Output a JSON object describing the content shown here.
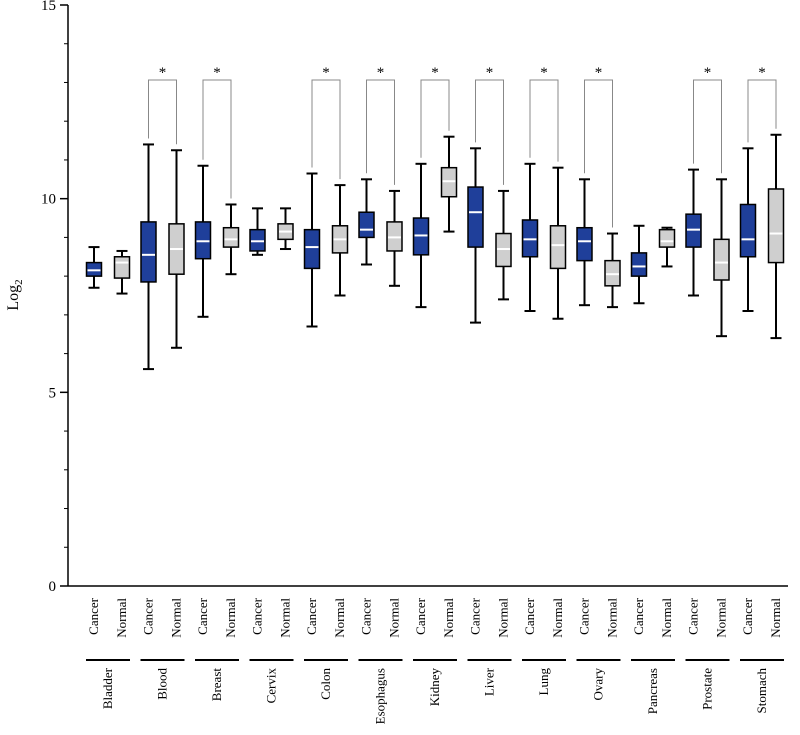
{
  "chart_data": {
    "type": "boxplot",
    "ylabel": "Log",
    "ylabel_subscript": "2",
    "ylim": [
      0,
      15
    ],
    "yticks": [
      0,
      5,
      10,
      15
    ],
    "colors": {
      "cancer": "#1f3f9a",
      "normal": "#cfcfcf",
      "median": "#ffffff"
    },
    "significance_marker": "*",
    "groups": [
      {
        "tissue": "Bladder",
        "significant": false,
        "boxes": [
          {
            "label": "Cancer",
            "min": 7.7,
            "q1": 8.0,
            "median": 8.15,
            "q3": 8.35,
            "max": 8.75
          },
          {
            "label": "Normal",
            "min": 7.55,
            "q1": 7.95,
            "median": 8.35,
            "q3": 8.5,
            "max": 8.65
          }
        ]
      },
      {
        "tissue": "Blood",
        "significant": true,
        "boxes": [
          {
            "label": "Cancer",
            "min": 5.6,
            "q1": 7.85,
            "median": 8.55,
            "q3": 9.4,
            "max": 11.4
          },
          {
            "label": "Normal",
            "min": 6.15,
            "q1": 8.05,
            "median": 8.7,
            "q3": 9.35,
            "max": 11.25
          }
        ]
      },
      {
        "tissue": "Breast",
        "significant": true,
        "boxes": [
          {
            "label": "Cancer",
            "min": 6.95,
            "q1": 8.45,
            "median": 8.9,
            "q3": 9.4,
            "max": 10.85
          },
          {
            "label": "Normal",
            "min": 8.05,
            "q1": 8.75,
            "median": 8.95,
            "q3": 9.25,
            "max": 9.85
          }
        ]
      },
      {
        "tissue": "Cervix",
        "significant": false,
        "boxes": [
          {
            "label": "Cancer",
            "min": 8.55,
            "q1": 8.65,
            "median": 8.9,
            "q3": 9.2,
            "max": 9.75
          },
          {
            "label": "Normal",
            "min": 8.7,
            "q1": 8.95,
            "median": 9.15,
            "q3": 9.35,
            "max": 9.75
          }
        ]
      },
      {
        "tissue": "Colon",
        "significant": true,
        "boxes": [
          {
            "label": "Cancer",
            "min": 6.7,
            "q1": 8.2,
            "median": 8.75,
            "q3": 9.2,
            "max": 10.65
          },
          {
            "label": "Normal",
            "min": 7.5,
            "q1": 8.6,
            "median": 8.95,
            "q3": 9.3,
            "max": 10.35
          }
        ]
      },
      {
        "tissue": "Esophagus",
        "significant": true,
        "boxes": [
          {
            "label": "Cancer",
            "min": 8.3,
            "q1": 9.0,
            "median": 9.2,
            "q3": 9.65,
            "max": 10.5
          },
          {
            "label": "Normal",
            "min": 7.75,
            "q1": 8.65,
            "median": 9.0,
            "q3": 9.4,
            "max": 10.2
          }
        ]
      },
      {
        "tissue": "Kidney",
        "significant": true,
        "boxes": [
          {
            "label": "Cancer",
            "min": 7.2,
            "q1": 8.55,
            "median": 9.05,
            "q3": 9.5,
            "max": 10.9
          },
          {
            "label": "Normal",
            "min": 9.15,
            "q1": 10.05,
            "median": 10.45,
            "q3": 10.8,
            "max": 11.6
          }
        ]
      },
      {
        "tissue": "Liver",
        "significant": true,
        "boxes": [
          {
            "label": "Cancer",
            "min": 6.8,
            "q1": 8.75,
            "median": 9.65,
            "q3": 10.3,
            "max": 11.3
          },
          {
            "label": "Normal",
            "min": 7.4,
            "q1": 8.25,
            "median": 8.7,
            "q3": 9.1,
            "max": 10.2
          }
        ]
      },
      {
        "tissue": "Lung",
        "significant": true,
        "boxes": [
          {
            "label": "Cancer",
            "min": 7.1,
            "q1": 8.5,
            "median": 8.95,
            "q3": 9.45,
            "max": 10.9
          },
          {
            "label": "Normal",
            "min": 6.9,
            "q1": 8.2,
            "median": 8.8,
            "q3": 9.3,
            "max": 10.8
          }
        ]
      },
      {
        "tissue": "Ovary",
        "significant": true,
        "boxes": [
          {
            "label": "Cancer",
            "min": 7.25,
            "q1": 8.4,
            "median": 8.9,
            "q3": 9.25,
            "max": 10.5
          },
          {
            "label": "Normal",
            "min": 7.2,
            "q1": 7.75,
            "median": 8.05,
            "q3": 8.4,
            "max": 9.1
          }
        ]
      },
      {
        "tissue": "Pancreas",
        "significant": false,
        "boxes": [
          {
            "label": "Cancer",
            "min": 7.3,
            "q1": 8.0,
            "median": 8.25,
            "q3": 8.6,
            "max": 9.3
          },
          {
            "label": "Normal",
            "min": 8.25,
            "q1": 8.75,
            "median": 8.9,
            "q3": 9.2,
            "max": 9.25
          }
        ]
      },
      {
        "tissue": "Prostate",
        "significant": true,
        "boxes": [
          {
            "label": "Cancer",
            "min": 7.5,
            "q1": 8.75,
            "median": 9.2,
            "q3": 9.6,
            "max": 10.75
          },
          {
            "label": "Normal",
            "min": 6.45,
            "q1": 7.9,
            "median": 8.35,
            "q3": 8.95,
            "max": 10.5
          }
        ]
      },
      {
        "tissue": "Stomach",
        "significant": true,
        "boxes": [
          {
            "label": "Cancer",
            "min": 7.1,
            "q1": 8.5,
            "median": 8.95,
            "q3": 9.85,
            "max": 11.3
          },
          {
            "label": "Normal",
            "min": 6.4,
            "q1": 8.35,
            "median": 9.1,
            "q3": 10.25,
            "max": 11.65
          }
        ]
      }
    ]
  }
}
